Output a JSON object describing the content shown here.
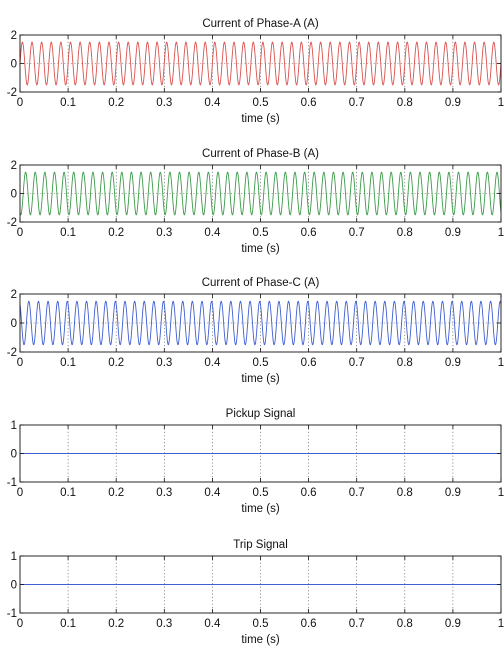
{
  "chart_data": [
    {
      "type": "line",
      "title": "Current of Phase-A  (A)",
      "xlabel": "time (s)",
      "ylabel": "",
      "xlim": [
        0,
        1
      ],
      "ylim": [
        -2,
        2
      ],
      "xticks": [
        0,
        0.1,
        0.2,
        0.3,
        0.4,
        0.5,
        0.6,
        0.7,
        0.8,
        0.9,
        1
      ],
      "xtick_labels": [
        "0",
        "0.1",
        "0.2",
        "0.3",
        "0.4",
        "0.5",
        "0.6",
        "0.7",
        "0.8",
        "0.9",
        "1"
      ],
      "yticks": [
        -2,
        0,
        2
      ],
      "ytick_labels": [
        "-2",
        "0",
        "2"
      ],
      "grid": true,
      "series": [
        {
          "color": "#d9534f",
          "waveform": "sinusoid",
          "amplitude": 1.5,
          "frequency_hz": 50,
          "phase_deg": 0
        }
      ]
    },
    {
      "type": "line",
      "title": "Current of Phase-B  (A)",
      "xlabel": "time (s)",
      "ylabel": "",
      "xlim": [
        0,
        1
      ],
      "ylim": [
        -2,
        2
      ],
      "xticks": [
        0,
        0.1,
        0.2,
        0.3,
        0.4,
        0.5,
        0.6,
        0.7,
        0.8,
        0.9,
        1
      ],
      "xtick_labels": [
        "0",
        "0.1",
        "0.2",
        "0.3",
        "0.4",
        "0.5",
        "0.6",
        "0.7",
        "0.8",
        "0.9",
        "1"
      ],
      "yticks": [
        -2,
        0,
        2
      ],
      "ytick_labels": [
        "-2",
        "0",
        "2"
      ],
      "grid": true,
      "series": [
        {
          "color": "#3d9b4a",
          "waveform": "sinusoid",
          "amplitude": 1.5,
          "frequency_hz": 50,
          "phase_deg": -120
        }
      ]
    },
    {
      "type": "line",
      "title": "Current of Phase-C  (A)",
      "xlabel": "time (s)",
      "ylabel": "",
      "xlim": [
        0,
        1
      ],
      "ylim": [
        -2,
        2
      ],
      "xticks": [
        0,
        0.1,
        0.2,
        0.3,
        0.4,
        0.5,
        0.6,
        0.7,
        0.8,
        0.9,
        1
      ],
      "xtick_labels": [
        "0",
        "0.1",
        "0.2",
        "0.3",
        "0.4",
        "0.5",
        "0.6",
        "0.7",
        "0.8",
        "0.9",
        "1"
      ],
      "yticks": [
        -2,
        0,
        2
      ],
      "ytick_labels": [
        "-2",
        "0",
        "2"
      ],
      "grid": true,
      "series": [
        {
          "color": "#3f5fd1",
          "waveform": "sinusoid",
          "amplitude": 1.5,
          "frequency_hz": 50,
          "phase_deg": 120
        }
      ]
    },
    {
      "type": "line",
      "title": "Pickup Signal",
      "xlabel": "time (s)",
      "ylabel": "",
      "xlim": [
        0,
        1
      ],
      "ylim": [
        -1,
        1
      ],
      "xticks": [
        0,
        0.1,
        0.2,
        0.3,
        0.4,
        0.5,
        0.6,
        0.7,
        0.8,
        0.9,
        1
      ],
      "xtick_labels": [
        "0",
        "0.1",
        "0.2",
        "0.3",
        "0.4",
        "0.5",
        "0.6",
        "0.7",
        "0.8",
        "0.9",
        "1"
      ],
      "yticks": [
        -1,
        0,
        1
      ],
      "ytick_labels": [
        "-1",
        "0",
        "1"
      ],
      "grid": true,
      "series": [
        {
          "color": "#3f5fd1",
          "waveform": "constant",
          "x": [
            0,
            1
          ],
          "y": [
            0,
            0
          ]
        }
      ]
    },
    {
      "type": "line",
      "title": "Trip Signal",
      "xlabel": "time (s)",
      "ylabel": "",
      "xlim": [
        0,
        1
      ],
      "ylim": [
        -1,
        1
      ],
      "xticks": [
        0,
        0.1,
        0.2,
        0.3,
        0.4,
        0.5,
        0.6,
        0.7,
        0.8,
        0.9,
        1
      ],
      "xtick_labels": [
        "0",
        "0.1",
        "0.2",
        "0.3",
        "0.4",
        "0.5",
        "0.6",
        "0.7",
        "0.8",
        "0.9",
        "1"
      ],
      "yticks": [
        -1,
        0,
        1
      ],
      "ytick_labels": [
        "-1",
        "0",
        "1"
      ],
      "grid": true,
      "series": [
        {
          "color": "#3f5fd1",
          "waveform": "constant",
          "x": [
            0,
            1
          ],
          "y": [
            0,
            0
          ]
        }
      ]
    }
  ]
}
